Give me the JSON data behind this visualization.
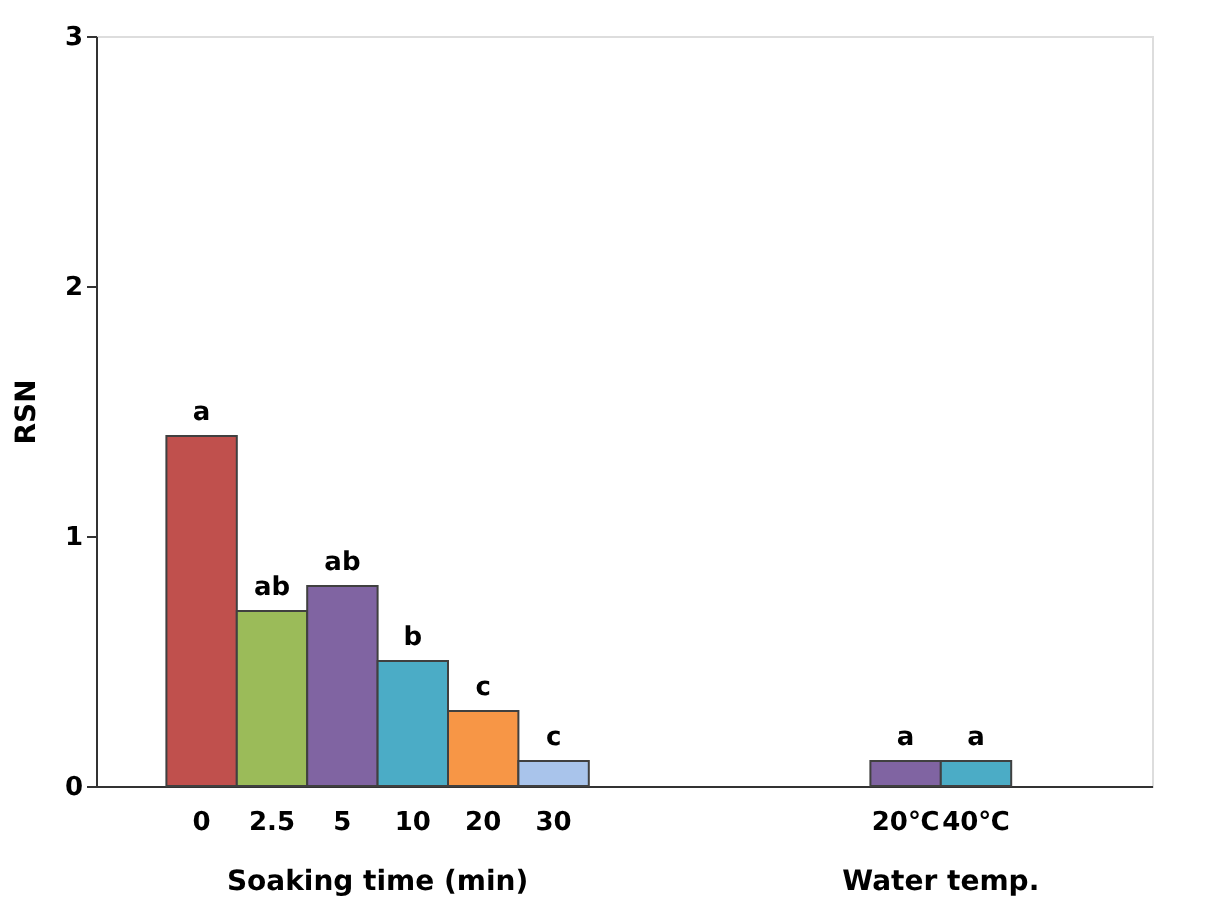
{
  "chart_data": {
    "type": "bar",
    "ylabel": "RSN",
    "categories": [
      null,
      "0",
      "2.5",
      "5",
      "10",
      "20",
      "30",
      null,
      null,
      null,
      null,
      "20℃",
      "40℃",
      null,
      null
    ],
    "values": [
      null,
      1.4,
      0.7,
      0.8,
      0.5,
      0.3,
      0.1,
      null,
      null,
      null,
      null,
      0.1,
      0.1,
      null,
      null
    ],
    "colors": [
      null,
      "#c0504d",
      "#9bbb59",
      "#8064a2",
      "#4bacc6",
      "#f79646",
      "#a9c4eb",
      null,
      null,
      null,
      null,
      "#8064a2",
      "#4bacc6",
      null,
      null
    ],
    "value_labels": [
      null,
      "a",
      "ab",
      "ab",
      "b",
      "c",
      "c",
      null,
      null,
      null,
      null,
      "a",
      "a",
      null,
      null
    ],
    "annotations": [
      "Soaking time (min)",
      "Water temp."
    ],
    "ylim": [
      0,
      3
    ],
    "yticks": [
      0,
      1,
      2,
      3
    ],
    "grid": false
  }
}
